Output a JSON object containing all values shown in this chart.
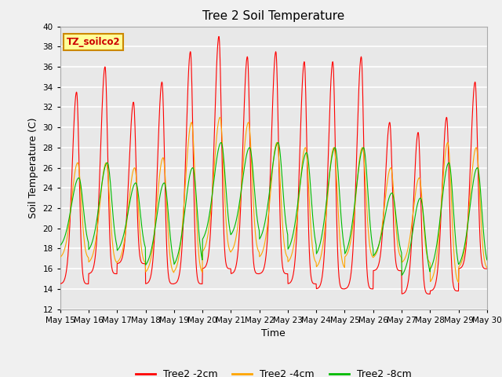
{
  "title": "Tree 2 Soil Temperature",
  "xlabel": "Time",
  "ylabel": "Soil Temperature (C)",
  "ylim": [
    12,
    40
  ],
  "yticks": [
    12,
    14,
    16,
    18,
    20,
    22,
    24,
    26,
    28,
    30,
    32,
    34,
    36,
    38,
    40
  ],
  "xtick_labels": [
    "May 15",
    "May 16",
    "May 17",
    "May 18",
    "May 19",
    "May 20",
    "May 21",
    "May 22",
    "May 23",
    "May 24",
    "May 25",
    "May 26",
    "May 27",
    "May 28",
    "May 29",
    "May 30"
  ],
  "legend_label": "TZ_soilco2",
  "line_colors": [
    "#ff0000",
    "#ffa500",
    "#00bb00"
  ],
  "line_labels": [
    "Tree2 -2cm",
    "Tree2 -4cm",
    "Tree2 -8cm"
  ],
  "axes_bg": "#e8e8e8",
  "fig_bg": "#f0f0f0",
  "grid_color": "#ffffff",
  "annotation_bg": "#ffff99",
  "annotation_border": "#cc8800",
  "peaks_2cm": [
    33.5,
    36.0,
    32.5,
    34.5,
    37.5,
    39.0,
    37.0,
    37.5,
    36.5,
    36.5,
    37.0,
    30.5,
    29.5,
    31.0,
    34.5
  ],
  "mins_2cm": [
    14.5,
    15.5,
    16.5,
    14.5,
    14.5,
    16.0,
    15.5,
    15.5,
    14.5,
    14.0,
    14.0,
    15.8,
    13.5,
    13.8,
    16.0
  ],
  "peaks_4cm": [
    26.5,
    26.5,
    26.0,
    27.0,
    30.5,
    31.0,
    30.5,
    28.5,
    28.0,
    28.0,
    28.0,
    26.0,
    25.0,
    28.5,
    28.0
  ],
  "mins_4cm": [
    17.0,
    16.5,
    16.5,
    15.5,
    15.5,
    17.5,
    17.5,
    17.0,
    16.5,
    16.0,
    17.0,
    17.0,
    16.5,
    14.5,
    16.0
  ],
  "peaks_8cm": [
    25.0,
    26.5,
    24.5,
    24.5,
    26.0,
    28.5,
    28.0,
    28.5,
    27.5,
    28.0,
    28.0,
    23.5,
    23.0,
    26.5,
    26.0
  ],
  "mins_8cm": [
    18.0,
    17.5,
    17.5,
    16.0,
    16.0,
    18.5,
    19.0,
    18.5,
    17.5,
    17.0,
    17.0,
    17.0,
    15.0,
    15.5,
    16.0
  ]
}
